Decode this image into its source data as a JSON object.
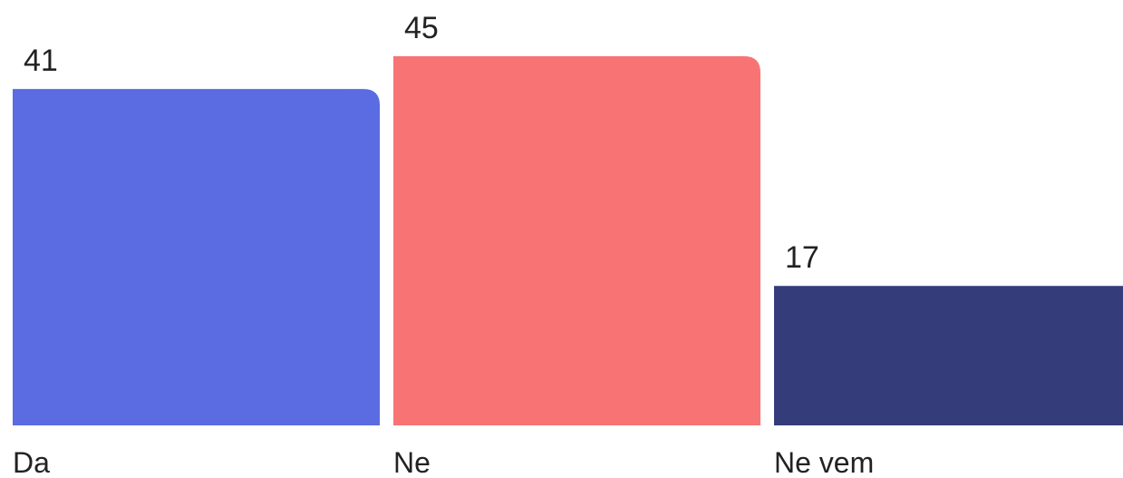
{
  "chart_data": {
    "type": "bar",
    "categories": [
      "Da",
      "Ne",
      "Ne vem"
    ],
    "values": [
      41,
      45,
      17
    ],
    "data_labels": [
      "41",
      "45",
      "17"
    ],
    "colors": [
      "#5B6BE1",
      "#F87474",
      "#343C7A"
    ],
    "title": "",
    "xlabel": "",
    "ylabel": "",
    "ylim": [
      0,
      45
    ],
    "grid": false,
    "legend": "none"
  }
}
